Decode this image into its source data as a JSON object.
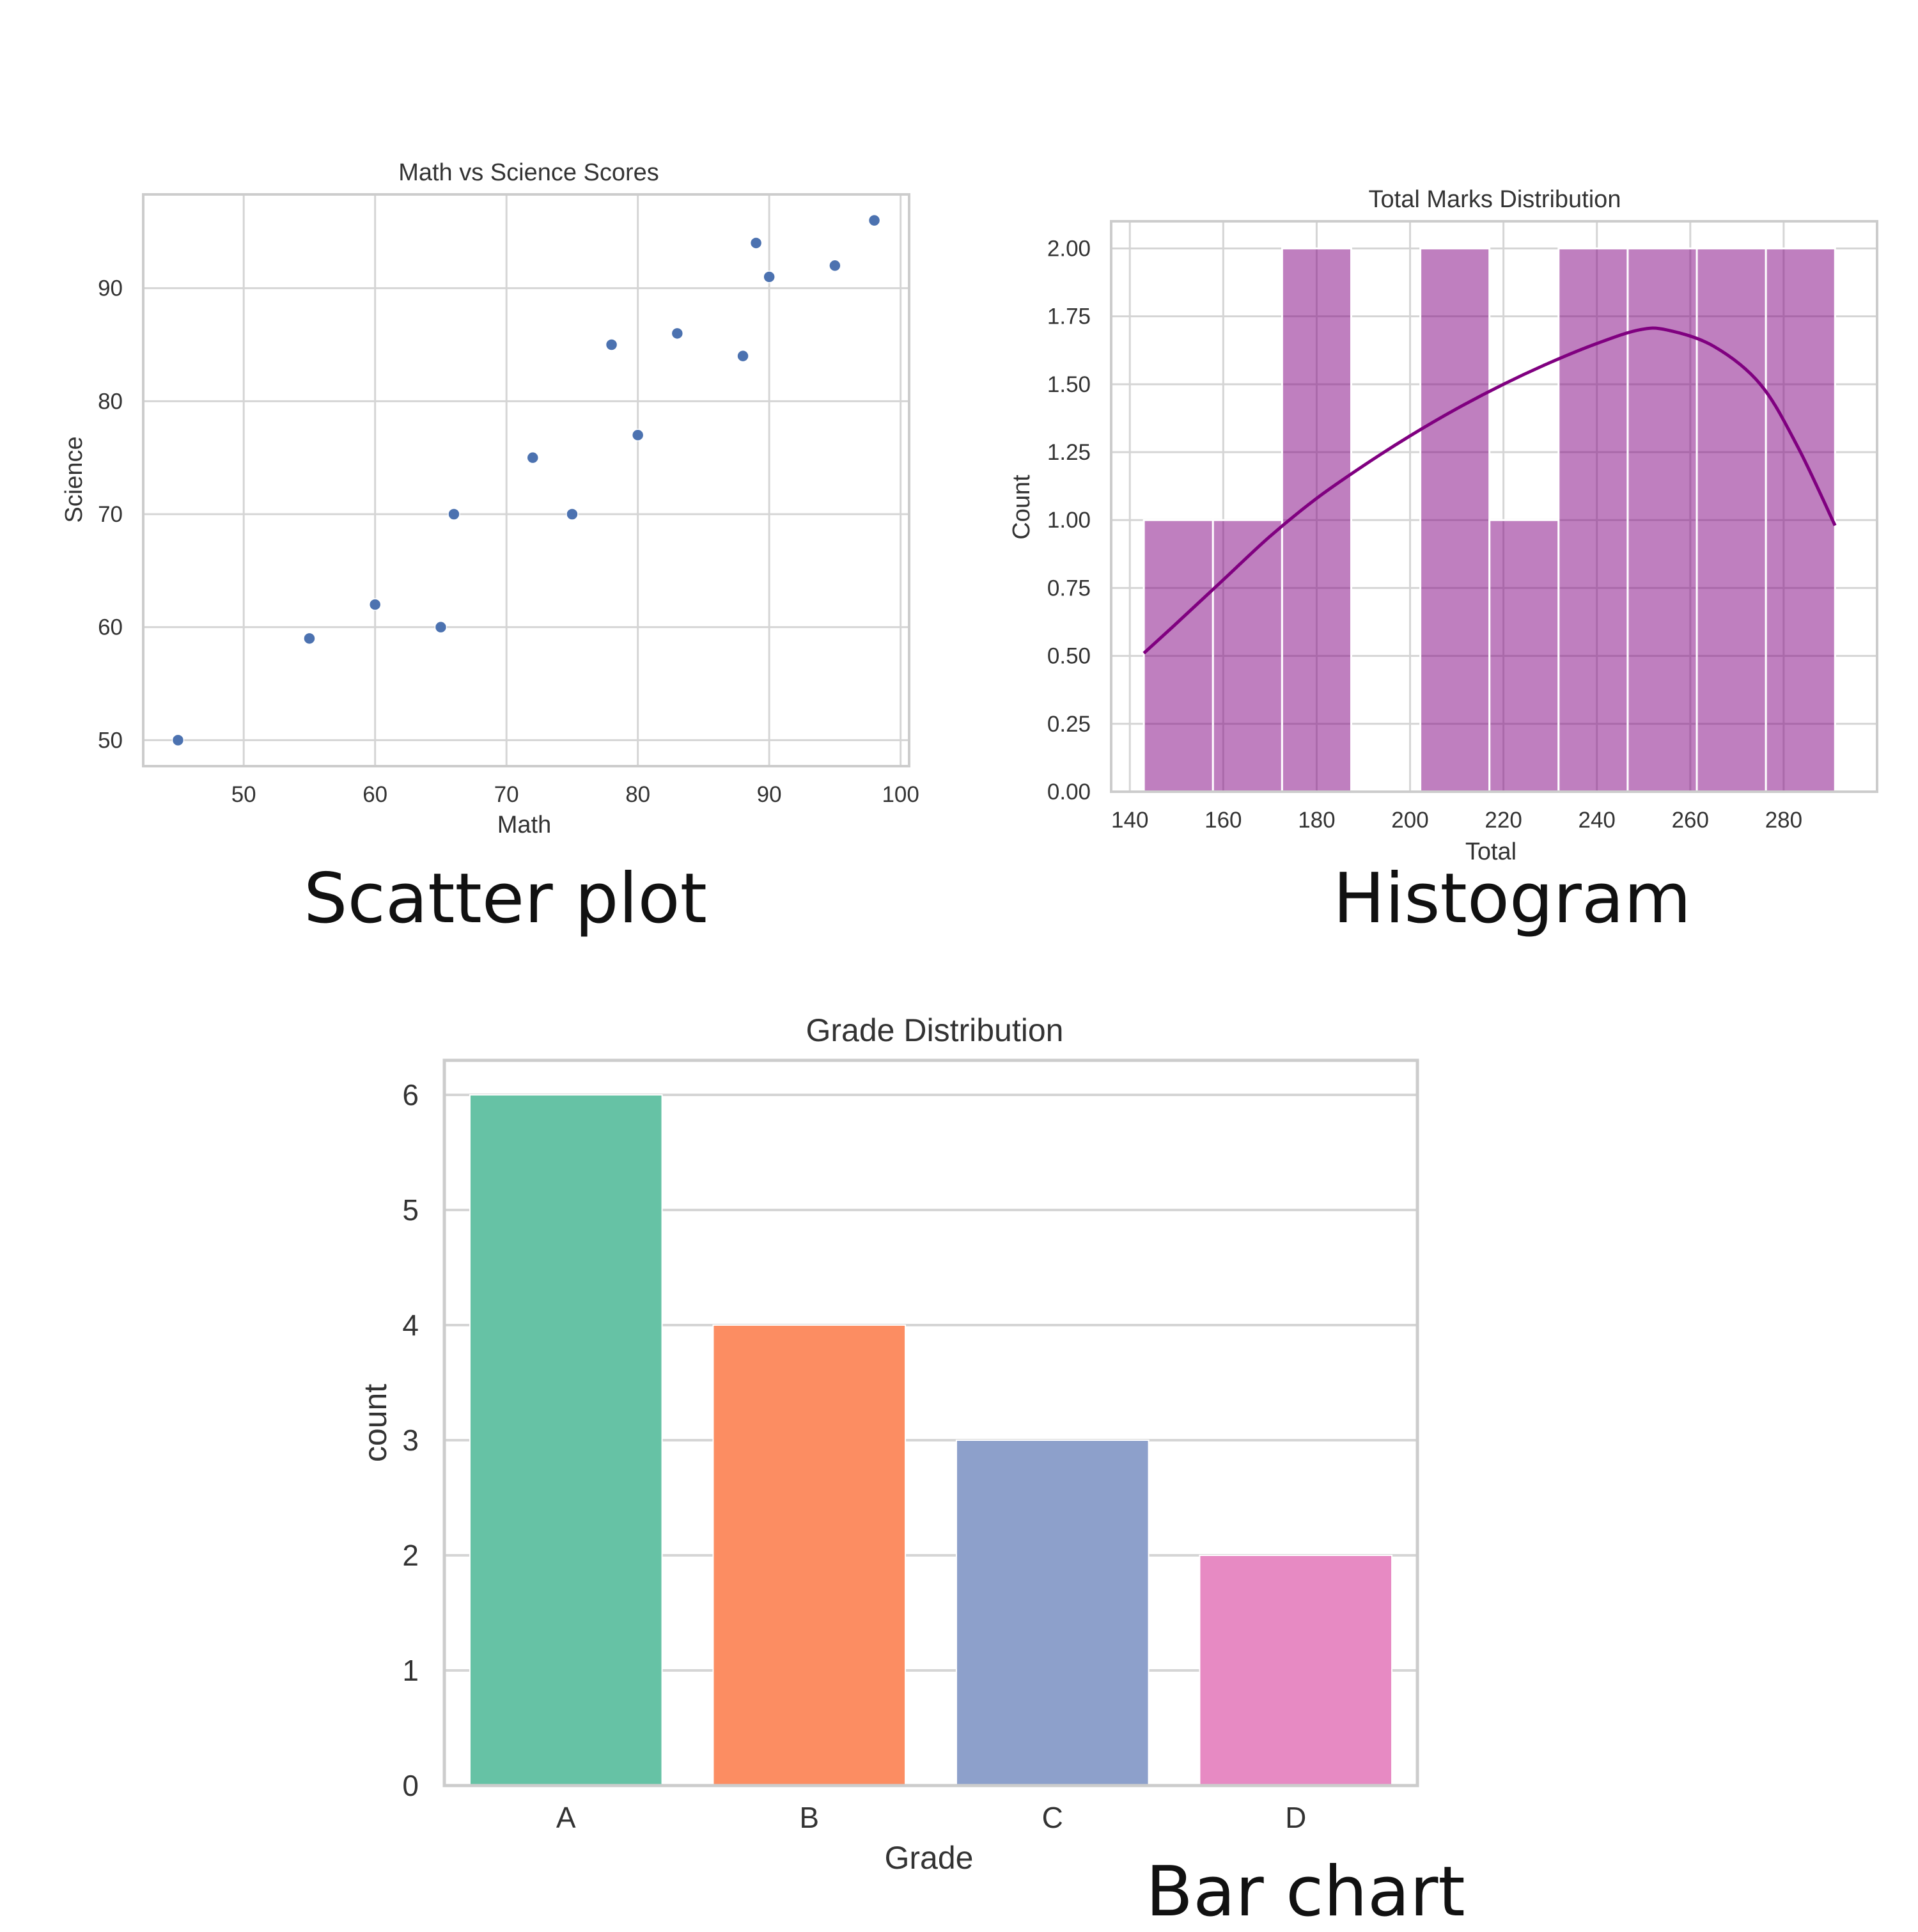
{
  "captions": {
    "scatter": "Scatter plot",
    "histogram": "Histogram",
    "bar": "Bar chart"
  },
  "chart_data": [
    {
      "type": "scatter",
      "title": "Math vs Science Scores",
      "xlabel": "Math",
      "ylabel": "Science",
      "xlim": [
        42.35,
        100.65
      ],
      "ylim": [
        47.7,
        98.3
      ],
      "xticks": [
        50,
        60,
        70,
        80,
        90,
        100
      ],
      "yticks": [
        50,
        60,
        70,
        80,
        90
      ],
      "grid": true,
      "color": "#4c72b0",
      "points": [
        {
          "x": 45,
          "y": 50
        },
        {
          "x": 55,
          "y": 59
        },
        {
          "x": 60,
          "y": 62
        },
        {
          "x": 65,
          "y": 60
        },
        {
          "x": 66,
          "y": 70
        },
        {
          "x": 72,
          "y": 75
        },
        {
          "x": 75,
          "y": 70
        },
        {
          "x": 78,
          "y": 85
        },
        {
          "x": 80,
          "y": 77
        },
        {
          "x": 83,
          "y": 86
        },
        {
          "x": 88,
          "y": 84
        },
        {
          "x": 89,
          "y": 94
        },
        {
          "x": 90,
          "y": 91
        },
        {
          "x": 95,
          "y": 92
        },
        {
          "x": 98,
          "y": 96
        }
      ]
    },
    {
      "type": "histogram",
      "title": "Total Marks Distribution",
      "xlabel": "Total",
      "ylabel": "Count",
      "xlim": [
        136,
        300
      ],
      "ylim": [
        0,
        2.1
      ],
      "xticks": [
        140,
        160,
        180,
        200,
        220,
        240,
        260,
        280
      ],
      "yticks": [
        "0.00",
        "0.25",
        "0.50",
        "0.75",
        "1.00",
        "1.25",
        "1.50",
        "1.75",
        "2.00"
      ],
      "grid": true,
      "color": "#800080",
      "bins": [
        {
          "start": 143,
          "end": 157.8,
          "count": 1
        },
        {
          "start": 157.8,
          "end": 172.6,
          "count": 1
        },
        {
          "start": 172.6,
          "end": 187.4,
          "count": 2
        },
        {
          "start": 187.4,
          "end": 202.2,
          "count": 0
        },
        {
          "start": 202.2,
          "end": 217,
          "count": 2
        },
        {
          "start": 217,
          "end": 231.8,
          "count": 1
        },
        {
          "start": 231.8,
          "end": 246.6,
          "count": 2
        },
        {
          "start": 246.6,
          "end": 261.4,
          "count": 2
        },
        {
          "start": 261.4,
          "end": 276.2,
          "count": 2
        },
        {
          "start": 276.2,
          "end": 291,
          "count": 2
        }
      ],
      "kde": [
        {
          "x": 143,
          "y": 0.51
        },
        {
          "x": 150,
          "y": 0.62
        },
        {
          "x": 160,
          "y": 0.78
        },
        {
          "x": 170,
          "y": 0.94
        },
        {
          "x": 180,
          "y": 1.08
        },
        {
          "x": 190,
          "y": 1.2
        },
        {
          "x": 200,
          "y": 1.31
        },
        {
          "x": 210,
          "y": 1.41
        },
        {
          "x": 220,
          "y": 1.5
        },
        {
          "x": 230,
          "y": 1.58
        },
        {
          "x": 240,
          "y": 1.65
        },
        {
          "x": 249,
          "y": 1.7
        },
        {
          "x": 255,
          "y": 1.7
        },
        {
          "x": 265,
          "y": 1.64
        },
        {
          "x": 275,
          "y": 1.5
        },
        {
          "x": 283,
          "y": 1.27
        },
        {
          "x": 291,
          "y": 0.98
        }
      ]
    },
    {
      "type": "bar",
      "title": "Grade Distribution",
      "xlabel": "Grade",
      "ylabel": "count",
      "ylim": [
        0,
        6.3
      ],
      "yticks": [
        0,
        1,
        2,
        3,
        4,
        5,
        6
      ],
      "grid": true,
      "categories": [
        "A",
        "B",
        "C",
        "D"
      ],
      "values": [
        6,
        4,
        3,
        2
      ],
      "colors": [
        "#66c2a5",
        "#fc8d62",
        "#8da0cb",
        "#e78ac3"
      ]
    }
  ]
}
